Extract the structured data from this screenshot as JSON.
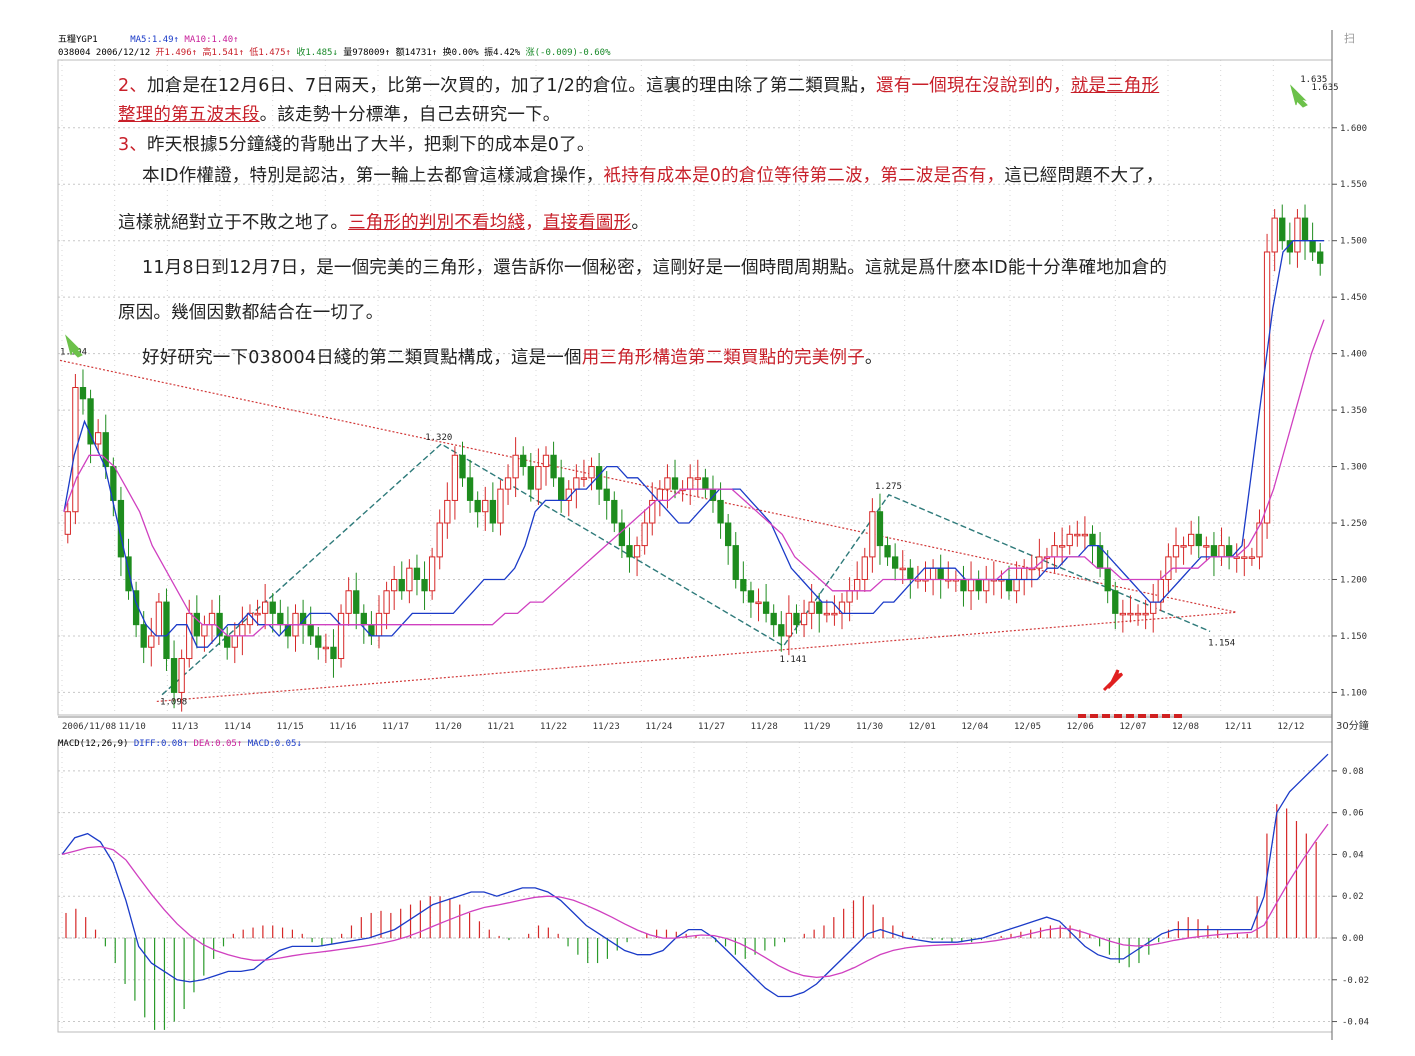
{
  "header": {
    "name": "五糧YGP1",
    "ma5": "MA5:1.49↑",
    "ma10": "MA10:1.40↑",
    "line2": "038004 2006/12/12",
    "open": "开1.496↑",
    "high": "高1.541↑",
    "low": "低1.475↑",
    "close": "收1.485↓",
    "vol": "量978009↑",
    "amt": "额14731↑",
    "chg1": "换0.00%",
    "chg2": "振4.42%",
    "change": "涨(-0.009)-0.60%"
  },
  "macd_header": {
    "name": "MACD(12,26,9)",
    "diff": "DIFF:0.08↑",
    "dea": "DEA:0.05↑",
    "macd": "MACD:0.05↓"
  },
  "top_right_icon": "扫",
  "period_label": "30分鐘",
  "annotations": [
    {
      "label": "1.394"
    },
    {
      "label": "1.320"
    },
    {
      "label": "1.275"
    },
    {
      "label": "1.141"
    },
    {
      "label": "1.154"
    },
    {
      "label": "1.098"
    },
    {
      "label": "1.635"
    },
    {
      "label": "1.635"
    }
  ],
  "text": {
    "l1a": "2、",
    "l1b": "加倉是在12月6日、7日兩天，比第一次買的，加了1/2的倉位。這裏的理由除了第二類買點，",
    "l1c": "還有一個現在沒說到的，",
    "l1d": "就是三角形",
    "l2a": "整理的第五波末段",
    "l2b": "。該走勢十分標準，自己去研究一下。",
    "l3a": "3、",
    "l3b": "昨天根據5分鐘綫的背馳出了大半，把剩下的成本是0了。",
    "l4a": "本ID作權證，特別是認沽，第一輪上去都會這樣減倉操作，",
    "l4b": "衹持有成本是0的倉位等待第二波，",
    "l4c": "第二波是否有，",
    "l4d": "這已經問題不大了，",
    "l5a": "這樣就絕對立于不敗之地了。",
    "l5b": "三角形的判別不看均綫",
    "l5c": "，",
    "l5d": "直接看圖形",
    "l5e": "。",
    "l6": "11月8日到12月7日，是一個完美的三角形，還告訴你一個秘密，這剛好是一個時間周期點。這就是爲什麽本ID能十分準確地加倉的",
    "l7": "原因。幾個因數都結合在一切了。",
    "l8a": "好好研究一下038004日綫的第二類買點構成，這是一個",
    "l8b": "用三角形構造第二類買點的完美例子",
    "l8c": "。"
  },
  "chart_data": [
    {
      "type": "candlestick",
      "title": "",
      "ylim": [
        1.08,
        1.66
      ],
      "y_ticks": [
        "1.600",
        "1.550",
        "1.500",
        "1.450",
        "1.400",
        "1.350",
        "1.300",
        "1.250",
        "1.200",
        "1.150",
        "1.100"
      ],
      "x_labels": [
        "2006/11/08",
        "11/10",
        "11/13",
        "11/14",
        "11/15",
        "11/16",
        "11/17",
        "11/20",
        "11/21",
        "11/22",
        "11/23",
        "11/24",
        "11/27",
        "11/28",
        "11/29",
        "11/30",
        "12/01",
        "12/04",
        "12/05",
        "12/06",
        "12/07",
        "12/08",
        "12/11",
        "12/12"
      ],
      "close": [
        1.26,
        1.37,
        1.36,
        1.32,
        1.33,
        1.3,
        1.27,
        1.22,
        1.19,
        1.16,
        1.14,
        1.15,
        1.18,
        1.13,
        1.1,
        1.13,
        1.17,
        1.15,
        1.16,
        1.17,
        1.15,
        1.14,
        1.15,
        1.16,
        1.17,
        1.17,
        1.18,
        1.17,
        1.16,
        1.15,
        1.17,
        1.16,
        1.15,
        1.14,
        1.14,
        1.13,
        1.17,
        1.19,
        1.17,
        1.16,
        1.15,
        1.17,
        1.19,
        1.2,
        1.19,
        1.21,
        1.2,
        1.19,
        1.22,
        1.25,
        1.27,
        1.31,
        1.29,
        1.27,
        1.26,
        1.27,
        1.25,
        1.28,
        1.29,
        1.31,
        1.3,
        1.28,
        1.3,
        1.31,
        1.29,
        1.27,
        1.28,
        1.29,
        1.29,
        1.3,
        1.28,
        1.27,
        1.25,
        1.23,
        1.22,
        1.23,
        1.25,
        1.27,
        1.28,
        1.29,
        1.28,
        1.28,
        1.29,
        1.29,
        1.28,
        1.27,
        1.25,
        1.23,
        1.2,
        1.19,
        1.18,
        1.18,
        1.17,
        1.16,
        1.15,
        1.17,
        1.16,
        1.17,
        1.18,
        1.17,
        1.17,
        1.17,
        1.18,
        1.19,
        1.2,
        1.22,
        1.26,
        1.23,
        1.22,
        1.21,
        1.21,
        1.2,
        1.2,
        1.2,
        1.21,
        1.2,
        1.2,
        1.2,
        1.19,
        1.2,
        1.19,
        1.2,
        1.2,
        1.2,
        1.19,
        1.2,
        1.21,
        1.21,
        1.22,
        1.22,
        1.23,
        1.23,
        1.24,
        1.24,
        1.24,
        1.23,
        1.21,
        1.19,
        1.17,
        1.17,
        1.17,
        1.17,
        1.17,
        1.18,
        1.2,
        1.22,
        1.23,
        1.23,
        1.24,
        1.23,
        1.23,
        1.22,
        1.23,
        1.22,
        1.22,
        1.22,
        1.22,
        1.25,
        1.49,
        1.52,
        1.5,
        1.49,
        1.52,
        1.5,
        1.49,
        1.48
      ],
      "ma5": [
        1.26,
        1.31,
        1.34,
        1.32,
        1.3,
        1.26,
        1.22,
        1.18,
        1.16,
        1.15,
        1.15,
        1.16,
        1.16,
        1.14,
        1.14,
        1.15,
        1.16,
        1.16,
        1.17,
        1.16,
        1.16,
        1.15,
        1.16,
        1.16,
        1.17,
        1.17,
        1.17,
        1.16,
        1.16,
        1.16,
        1.15,
        1.15,
        1.15,
        1.16,
        1.17,
        1.17,
        1.17,
        1.17,
        1.17,
        1.18,
        1.19,
        1.2,
        1.2,
        1.2,
        1.21,
        1.23,
        1.26,
        1.27,
        1.27,
        1.27,
        1.28,
        1.28,
        1.29,
        1.3,
        1.3,
        1.29,
        1.29,
        1.28,
        1.27,
        1.26,
        1.25,
        1.25,
        1.26,
        1.27,
        1.28,
        1.28,
        1.28,
        1.27,
        1.26,
        1.25,
        1.23,
        1.21,
        1.2,
        1.19,
        1.18,
        1.18,
        1.17,
        1.17,
        1.17,
        1.17,
        1.18,
        1.18,
        1.19,
        1.2,
        1.21,
        1.21,
        1.21,
        1.21,
        1.2,
        1.2,
        1.2,
        1.2,
        1.2,
        1.2,
        1.2,
        1.2,
        1.21,
        1.21,
        1.22,
        1.22,
        1.23,
        1.23,
        1.22,
        1.21,
        1.2,
        1.19,
        1.18,
        1.18,
        1.19,
        1.2,
        1.21,
        1.22,
        1.22,
        1.22,
        1.22,
        1.23,
        1.3,
        1.37,
        1.44,
        1.49,
        1.5,
        1.5,
        1.5,
        1.5
      ],
      "ma10": [
        1.26,
        1.29,
        1.31,
        1.31,
        1.3,
        1.28,
        1.26,
        1.23,
        1.21,
        1.19,
        1.17,
        1.16,
        1.16,
        1.15,
        1.15,
        1.15,
        1.16,
        1.16,
        1.16,
        1.16,
        1.16,
        1.16,
        1.16,
        1.16,
        1.16,
        1.16,
        1.16,
        1.16,
        1.16,
        1.16,
        1.16,
        1.16,
        1.16,
        1.16,
        1.16,
        1.17,
        1.17,
        1.18,
        1.18,
        1.19,
        1.2,
        1.21,
        1.22,
        1.23,
        1.24,
        1.25,
        1.26,
        1.27,
        1.27,
        1.28,
        1.28,
        1.28,
        1.28,
        1.28,
        1.27,
        1.26,
        1.25,
        1.24,
        1.22,
        1.21,
        1.2,
        1.19,
        1.19,
        1.19,
        1.19,
        1.2,
        1.2,
        1.2,
        1.2,
        1.2,
        1.2,
        1.2,
        1.2,
        1.2,
        1.2,
        1.21,
        1.21,
        1.21,
        1.22,
        1.22,
        1.22,
        1.22,
        1.21,
        1.21,
        1.2,
        1.2,
        1.2,
        1.2,
        1.21,
        1.21,
        1.21,
        1.22,
        1.22,
        1.22,
        1.23,
        1.25,
        1.28,
        1.32,
        1.36,
        1.4,
        1.43
      ]
    },
    {
      "type": "bar",
      "title": "",
      "ylim": [
        -0.045,
        0.09
      ],
      "y_ticks": [
        "0.08",
        "0.06",
        "0.04",
        "0.02",
        "0.00",
        "-0.02",
        "-0.04"
      ],
      "macd_hist": [
        0.012,
        0.014,
        0.01,
        0.004,
        -0.004,
        -0.012,
        -0.022,
        -0.03,
        -0.038,
        -0.044,
        -0.044,
        -0.04,
        -0.034,
        -0.026,
        -0.018,
        -0.01,
        -0.004,
        0.002,
        0.004,
        0.005,
        0.006,
        0.006,
        0.005,
        0.004,
        0.002,
        -0.002,
        -0.004,
        -0.003,
        0.002,
        0.006,
        0.01,
        0.012,
        0.013,
        0.012,
        0.014,
        0.016,
        0.018,
        0.02,
        0.02,
        0.019,
        0.016,
        0.012,
        0.008,
        0.004,
        0.001,
        -0.001,
        0.0,
        0.002,
        0.006,
        0.005,
        0.002,
        -0.004,
        -0.008,
        -0.012,
        -0.012,
        -0.01,
        -0.006,
        -0.002,
        0.0,
        0.002,
        0.004,
        0.004,
        0.003,
        0.002,
        0.001,
        0.0,
        -0.002,
        -0.004,
        -0.008,
        -0.01,
        -0.008,
        -0.006,
        -0.004,
        -0.002,
        0.0,
        0.002,
        0.004,
        0.006,
        0.01,
        0.014,
        0.018,
        0.02,
        0.016,
        0.01,
        0.006,
        0.003,
        0.001,
        0.0,
        -0.001,
        -0.001,
        -0.002,
        -0.002,
        -0.002,
        -0.001,
        0.0,
        0.001,
        0.002,
        0.003,
        0.004,
        0.005,
        0.006,
        0.006,
        0.006,
        0.004,
        0.002,
        -0.004,
        -0.008,
        -0.012,
        -0.014,
        -0.012,
        -0.008,
        -0.002,
        0.004,
        0.008,
        0.01,
        0.009,
        0.006,
        0.004,
        0.002,
        0.002,
        0.002,
        0.02,
        0.05,
        0.064,
        0.062,
        0.056,
        0.05,
        0.046
      ],
      "diff": [
        0.04,
        0.048,
        0.05,
        0.046,
        0.036,
        0.018,
        -0.004,
        -0.012,
        -0.016,
        -0.02,
        -0.021,
        -0.02,
        -0.018,
        -0.016,
        -0.016,
        -0.015,
        -0.01,
        -0.006,
        -0.004,
        -0.004,
        -0.004,
        -0.003,
        -0.002,
        -0.001,
        0.0,
        0.002,
        0.004,
        0.008,
        0.012,
        0.016,
        0.018,
        0.02,
        0.022,
        0.022,
        0.02,
        0.022,
        0.024,
        0.024,
        0.022,
        0.018,
        0.012,
        0.006,
        0.002,
        -0.002,
        -0.006,
        -0.008,
        -0.008,
        -0.006,
        0.0,
        0.004,
        0.004,
        0.0,
        -0.006,
        -0.012,
        -0.018,
        -0.024,
        -0.028,
        -0.028,
        -0.026,
        -0.022,
        -0.016,
        -0.01,
        -0.004,
        0.002,
        0.004,
        0.002,
        0.0,
        -0.001,
        -0.002,
        -0.002,
        -0.002,
        -0.001,
        0.0,
        0.002,
        0.004,
        0.006,
        0.008,
        0.01,
        0.008,
        0.002,
        -0.004,
        -0.008,
        -0.01,
        -0.01,
        -0.006,
        -0.002,
        0.002,
        0.004,
        0.004,
        0.004,
        0.004,
        0.004,
        0.004,
        0.004,
        0.02,
        0.06,
        0.07,
        0.076,
        0.082,
        0.088
      ]
    }
  ]
}
